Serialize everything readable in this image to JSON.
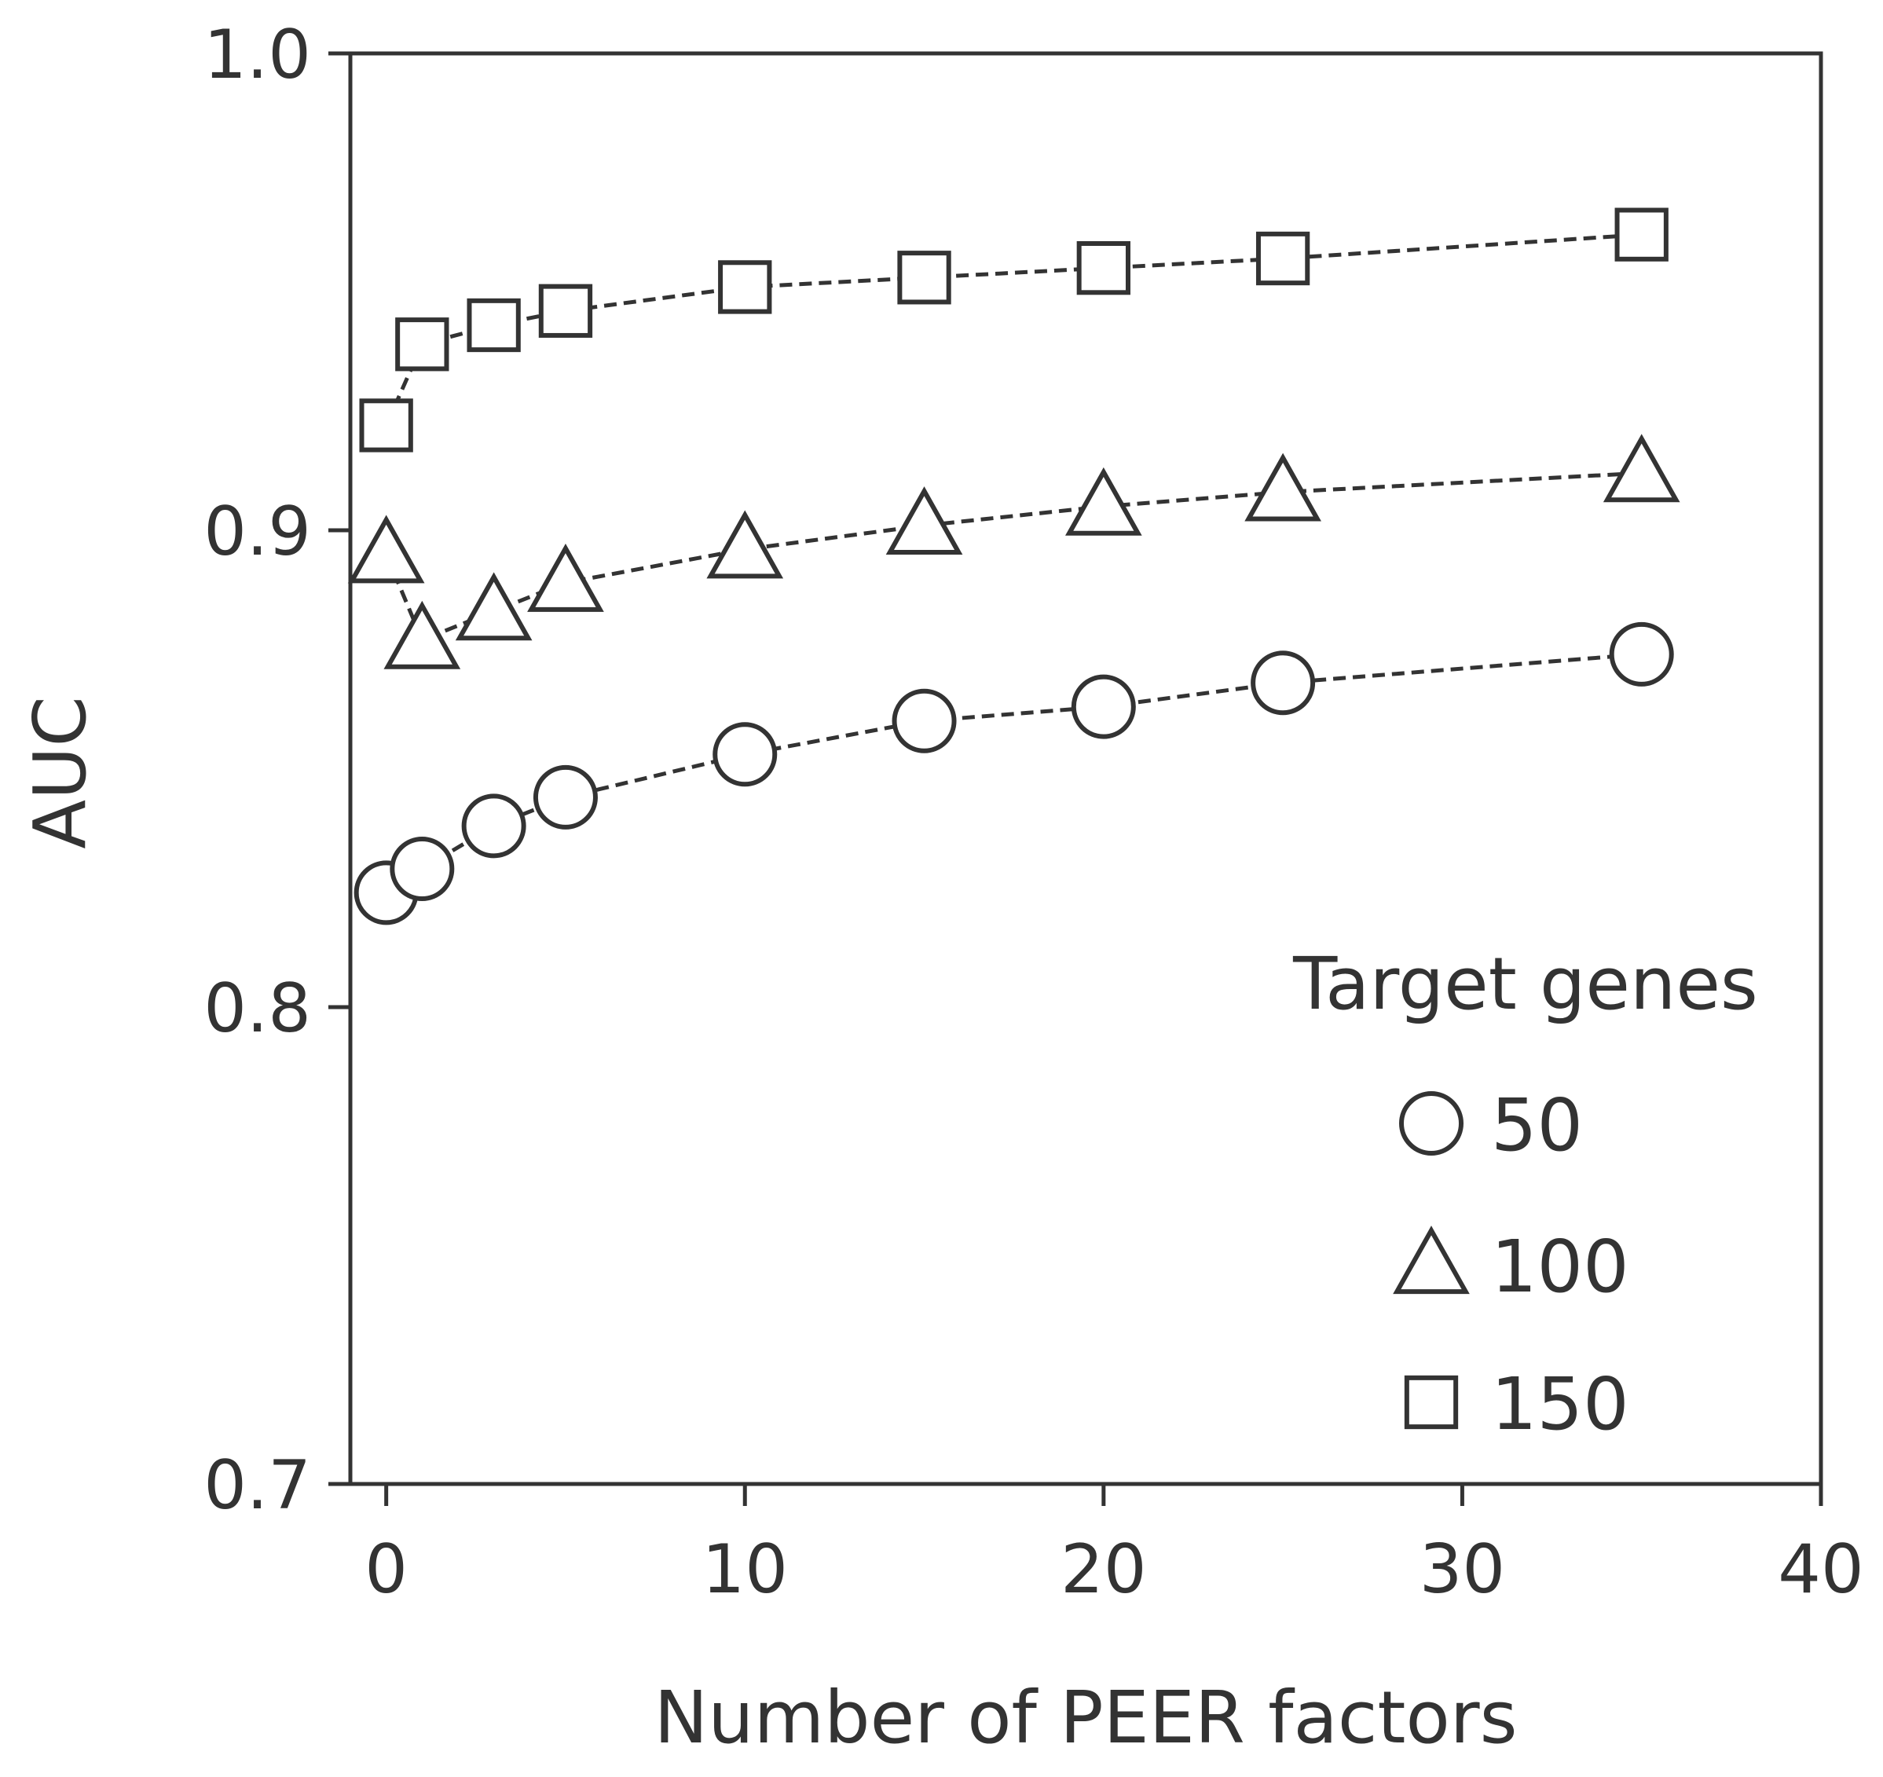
{
  "chart_data": {
    "type": "line",
    "title": "",
    "xlabel": "Number of PEER factors",
    "ylabel": "AUC",
    "xlim": [
      -1,
      40
    ],
    "ylim": [
      0.7,
      1.0
    ],
    "x_ticks": [
      0,
      10,
      20,
      30,
      40
    ],
    "x_tick_labels": [
      "0",
      "10",
      "20",
      "30",
      "40"
    ],
    "y_ticks": [
      0.7,
      0.8,
      0.9,
      1.0
    ],
    "y_tick_labels": [
      "0.7",
      "0.8",
      "0.9",
      "1.0"
    ],
    "grid": false,
    "legend": {
      "title": "Target genes",
      "position": "bottom-right"
    },
    "x": [
      0,
      1,
      3,
      5,
      10,
      15,
      20,
      25,
      35
    ],
    "series": [
      {
        "name": "50",
        "marker": "circle",
        "values": [
          0.824,
          0.829,
          0.838,
          0.844,
          0.853,
          0.86,
          0.863,
          0.868,
          0.874
        ]
      },
      {
        "name": "100",
        "marker": "triangle",
        "values": [
          0.895,
          0.877,
          0.883,
          0.889,
          0.896,
          0.901,
          0.905,
          0.908,
          0.912
        ]
      },
      {
        "name": "150",
        "marker": "square",
        "values": [
          0.922,
          0.939,
          0.943,
          0.946,
          0.951,
          0.953,
          0.955,
          0.957,
          0.962
        ]
      }
    ],
    "colors": {
      "ink": "#333333",
      "marker_fill": "#ffffff"
    }
  }
}
